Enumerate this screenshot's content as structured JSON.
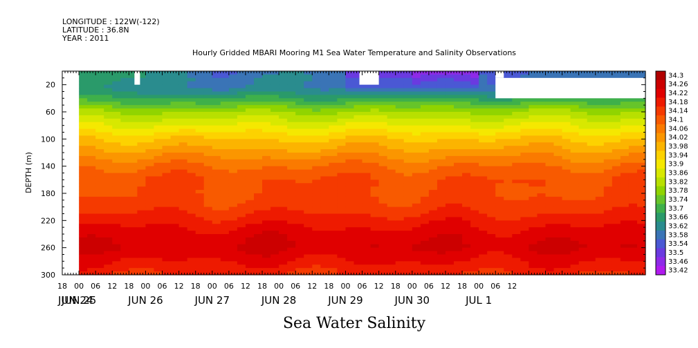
{
  "header": {
    "longitude": "LONGITUDE : 122W(-122)",
    "latitude": "LATITUDE : 36.8N",
    "year": "YEAR : 2011"
  },
  "chart_data": {
    "type": "heatmap",
    "title": "Hourly Gridded MBARI Mooring M1 Sea Water Temperature and Salinity Observations",
    "subtitle": "Sea Water Salinity",
    "ylabel": "DEPTH (m)",
    "xlabel": "",
    "ylim": [
      300,
      0
    ],
    "yticks": [
      "20",
      "60",
      "100",
      "140",
      "180",
      "220",
      "260",
      "300"
    ],
    "xlim_hours": [
      -6,
      204
    ],
    "x_hour_ticks": [
      "18",
      "00",
      "06",
      "12",
      "18",
      "00",
      "06",
      "12",
      "18",
      "00",
      "06",
      "12",
      "18",
      "00",
      "06",
      "12",
      "18",
      "00",
      "06",
      "12",
      "18",
      "00",
      "06",
      "12",
      "18",
      "00",
      "06",
      "12"
    ],
    "x_day_labels": [
      "JUN 24",
      "JUN 25",
      "JUN 26",
      "JUN 27",
      "JUN 28",
      "JUN 29",
      "JUN 30",
      "JUL  1"
    ],
    "colorbar": {
      "levels": [
        "34.3",
        "34.26",
        "34.22",
        "34.18",
        "34.14",
        "34.1",
        "34.06",
        "34.02",
        "33.98",
        "33.94",
        "33.9",
        "33.86",
        "33.82",
        "33.78",
        "33.74",
        "33.7",
        "33.66",
        "33.62",
        "33.58",
        "33.54",
        "33.5",
        "33.46",
        "33.42"
      ],
      "colors": [
        "#b00000",
        "#cc0000",
        "#e00000",
        "#ee1a00",
        "#f53a00",
        "#f85a00",
        "#fa7a00",
        "#fb9600",
        "#fcb400",
        "#fdd200",
        "#f5e800",
        "#d8e800",
        "#b8e000",
        "#90d400",
        "#66c42a",
        "#3fb04a",
        "#2a9a6a",
        "#2a8c8e",
        "#3a74b6",
        "#4a58d4",
        "#6a3ae0",
        "#8e2ae8",
        "#b01aef"
      ]
    },
    "depth_profile": [
      {
        "depth": 10,
        "salinity": 33.66
      },
      {
        "depth": 20,
        "salinity": 33.62
      },
      {
        "depth": 40,
        "salinity": 33.7
      },
      {
        "depth": 60,
        "salinity": 33.82
      },
      {
        "depth": 80,
        "salinity": 33.9
      },
      {
        "depth": 100,
        "salinity": 33.98
      },
      {
        "depth": 120,
        "salinity": 34.04
      },
      {
        "depth": 140,
        "salinity": 34.1
      },
      {
        "depth": 160,
        "salinity": 34.14
      },
      {
        "depth": 180,
        "salinity": 34.14
      },
      {
        "depth": 200,
        "salinity": 34.16
      },
      {
        "depth": 220,
        "salinity": 34.2
      },
      {
        "depth": 240,
        "salinity": 34.24
      },
      {
        "depth": 260,
        "salinity": 34.26
      },
      {
        "depth": 280,
        "salinity": 34.22
      },
      {
        "depth": 300,
        "salinity": 34.18
      }
    ],
    "surface_salinity_by_day": [
      {
        "x_label": "JUN 25",
        "salinity": 33.66
      },
      {
        "x_label": "JUN 26",
        "salinity": 33.62
      },
      {
        "x_label": "JUN 27",
        "salinity": 33.58
      },
      {
        "x_label": "JUN 28",
        "salinity": 33.62
      },
      {
        "x_label": "JUN 29",
        "salinity": 33.5
      },
      {
        "x_label": "JUN 30",
        "salinity": 33.46
      },
      {
        "x_label": "JUL  1",
        "salinity": 33.58
      }
    ],
    "missing_data": [
      {
        "hour_start": -6,
        "hour_end": 0,
        "depth_top": 0,
        "depth_bottom": 300
      },
      {
        "hour_start": 20,
        "hour_end": 22,
        "depth_top": 0,
        "depth_bottom": 20
      },
      {
        "hour_start": 101,
        "hour_end": 108,
        "depth_top": 0,
        "depth_bottom": 20
      },
      {
        "hour_start": 150,
        "hour_end": 153,
        "depth_top": 0,
        "depth_bottom": 10
      },
      {
        "hour_start": 150,
        "hour_end": 204,
        "depth_top": 10,
        "depth_bottom": 40
      }
    ]
  }
}
